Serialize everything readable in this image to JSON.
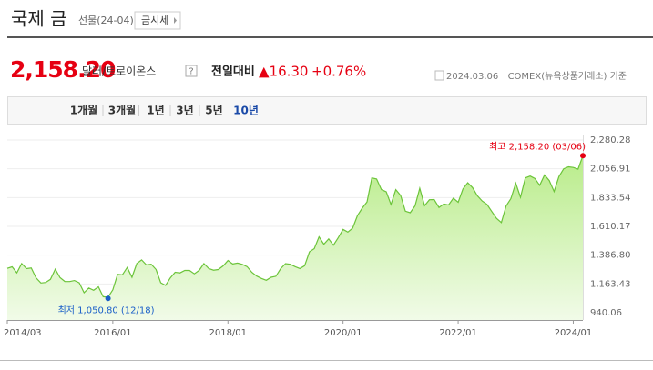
{
  "header": {
    "title": "국제 금",
    "subtitle": "선물(24-04)",
    "button": "금시세"
  },
  "quote": {
    "price": "2,158.20",
    "unit": "달러/트로이온스",
    "help": "?",
    "compare_label": "전일대비",
    "change": "▲16.30",
    "change_pct": "+0.76%",
    "date": "2024.03.06",
    "source": "COMEX(뉴욕상품거래소) 기준"
  },
  "tabs": {
    "items": [
      "1개월",
      "3개월",
      "1년",
      "3년",
      "5년",
      "10년"
    ],
    "selected": 5
  },
  "chart": {
    "type": "area",
    "x": [
      "2014/03",
      "2014/04",
      "2014/05",
      "2014/06",
      "2014/07",
      "2014/08",
      "2014/09",
      "2014/10",
      "2014/11",
      "2014/12",
      "2015/01",
      "2015/02",
      "2015/03",
      "2015/04",
      "2015/05",
      "2015/06",
      "2015/07",
      "2015/08",
      "2015/09",
      "2015/10",
      "2015/11",
      "2015/12",
      "2016/01",
      "2016/02",
      "2016/03",
      "2016/04",
      "2016/05",
      "2016/06",
      "2016/07",
      "2016/08",
      "2016/09",
      "2016/10",
      "2016/11",
      "2016/12",
      "2017/01",
      "2017/02",
      "2017/03",
      "2017/04",
      "2017/05",
      "2017/06",
      "2017/07",
      "2017/08",
      "2017/09",
      "2017/10",
      "2017/11",
      "2017/12",
      "2018/01",
      "2018/02",
      "2018/03",
      "2018/04",
      "2018/05",
      "2018/06",
      "2018/07",
      "2018/08",
      "2018/09",
      "2018/10",
      "2018/11",
      "2018/12",
      "2019/01",
      "2019/02",
      "2019/03",
      "2019/04",
      "2019/05",
      "2019/06",
      "2019/07",
      "2019/08",
      "2019/09",
      "2019/10",
      "2019/11",
      "2019/12",
      "2020/01",
      "2020/02",
      "2020/03",
      "2020/04",
      "2020/05",
      "2020/06",
      "2020/07",
      "2020/08",
      "2020/09",
      "2020/10",
      "2020/11",
      "2020/12",
      "2021/01",
      "2021/02",
      "2021/03",
      "2021/04",
      "2021/05",
      "2021/06",
      "2021/07",
      "2021/08",
      "2021/09",
      "2021/10",
      "2021/11",
      "2021/12",
      "2022/01",
      "2022/02",
      "2022/03",
      "2022/04",
      "2022/05",
      "2022/06",
      "2022/07",
      "2022/08",
      "2022/09",
      "2022/10",
      "2022/11",
      "2022/12",
      "2023/01",
      "2023/02",
      "2023/03",
      "2023/04",
      "2023/05",
      "2023/06",
      "2023/07",
      "2023/08",
      "2023/09",
      "2023/10",
      "2023/11",
      "2023/12",
      "2024/01",
      "2024/02",
      "2024/03"
    ],
    "values": [
      1284,
      1296,
      1250,
      1322,
      1282,
      1287,
      1210,
      1171,
      1175,
      1199,
      1278,
      1212,
      1183,
      1182,
      1190,
      1172,
      1095,
      1132,
      1114,
      1141,
      1064,
      1060,
      1118,
      1238,
      1234,
      1291,
      1215,
      1322,
      1350,
      1311,
      1317,
      1276,
      1173,
      1152,
      1211,
      1254,
      1249,
      1268,
      1268,
      1242,
      1269,
      1322,
      1283,
      1270,
      1275,
      1303,
      1345,
      1318,
      1325,
      1315,
      1298,
      1253,
      1224,
      1206,
      1192,
      1215,
      1223,
      1282,
      1321,
      1316,
      1298,
      1283,
      1305,
      1413,
      1437,
      1529,
      1472,
      1513,
      1464,
      1523,
      1587,
      1566,
      1596,
      1694,
      1751,
      1800,
      1986,
      1978,
      1895,
      1879,
      1780,
      1895,
      1850,
      1728,
      1716,
      1769,
      1905,
      1771,
      1817,
      1818,
      1757,
      1784,
      1776,
      1829,
      1797,
      1900,
      1949,
      1911,
      1848,
      1807,
      1781,
      1726,
      1672,
      1640,
      1768,
      1826,
      1945,
      1836,
      1986,
      2000,
      1982,
      1929,
      2009,
      1966,
      1880,
      1996,
      2057,
      2072,
      2067,
      2054,
      2158.2
    ],
    "ylim": [
      940.06,
      2280.28
    ],
    "yticks": [
      {
        "value": 2280.28,
        "label": "2,280.28"
      },
      {
        "value": 2056.91,
        "label": "2,056.91"
      },
      {
        "value": 1833.54,
        "label": "1,833.54"
      },
      {
        "value": 1610.17,
        "label": "1,610.17"
      },
      {
        "value": 1386.8,
        "label": "1,386.80"
      },
      {
        "value": 1163.43,
        "label": "1,163.43"
      },
      {
        "value": 940.06,
        "label": "940.06"
      }
    ],
    "xticks": [
      "2014/03",
      "2016/01",
      "2018/01",
      "2020/01",
      "2022/01",
      "2024/01"
    ],
    "high": {
      "label": "최고 2,158.20 (03/06)",
      "x": "2024/03",
      "value": 2158.2
    },
    "low": {
      "label": "최저 1,050.80 (12/18)",
      "x": "2015/12",
      "value": 1050.8
    },
    "color": "#6cc43a",
    "grid": true
  }
}
